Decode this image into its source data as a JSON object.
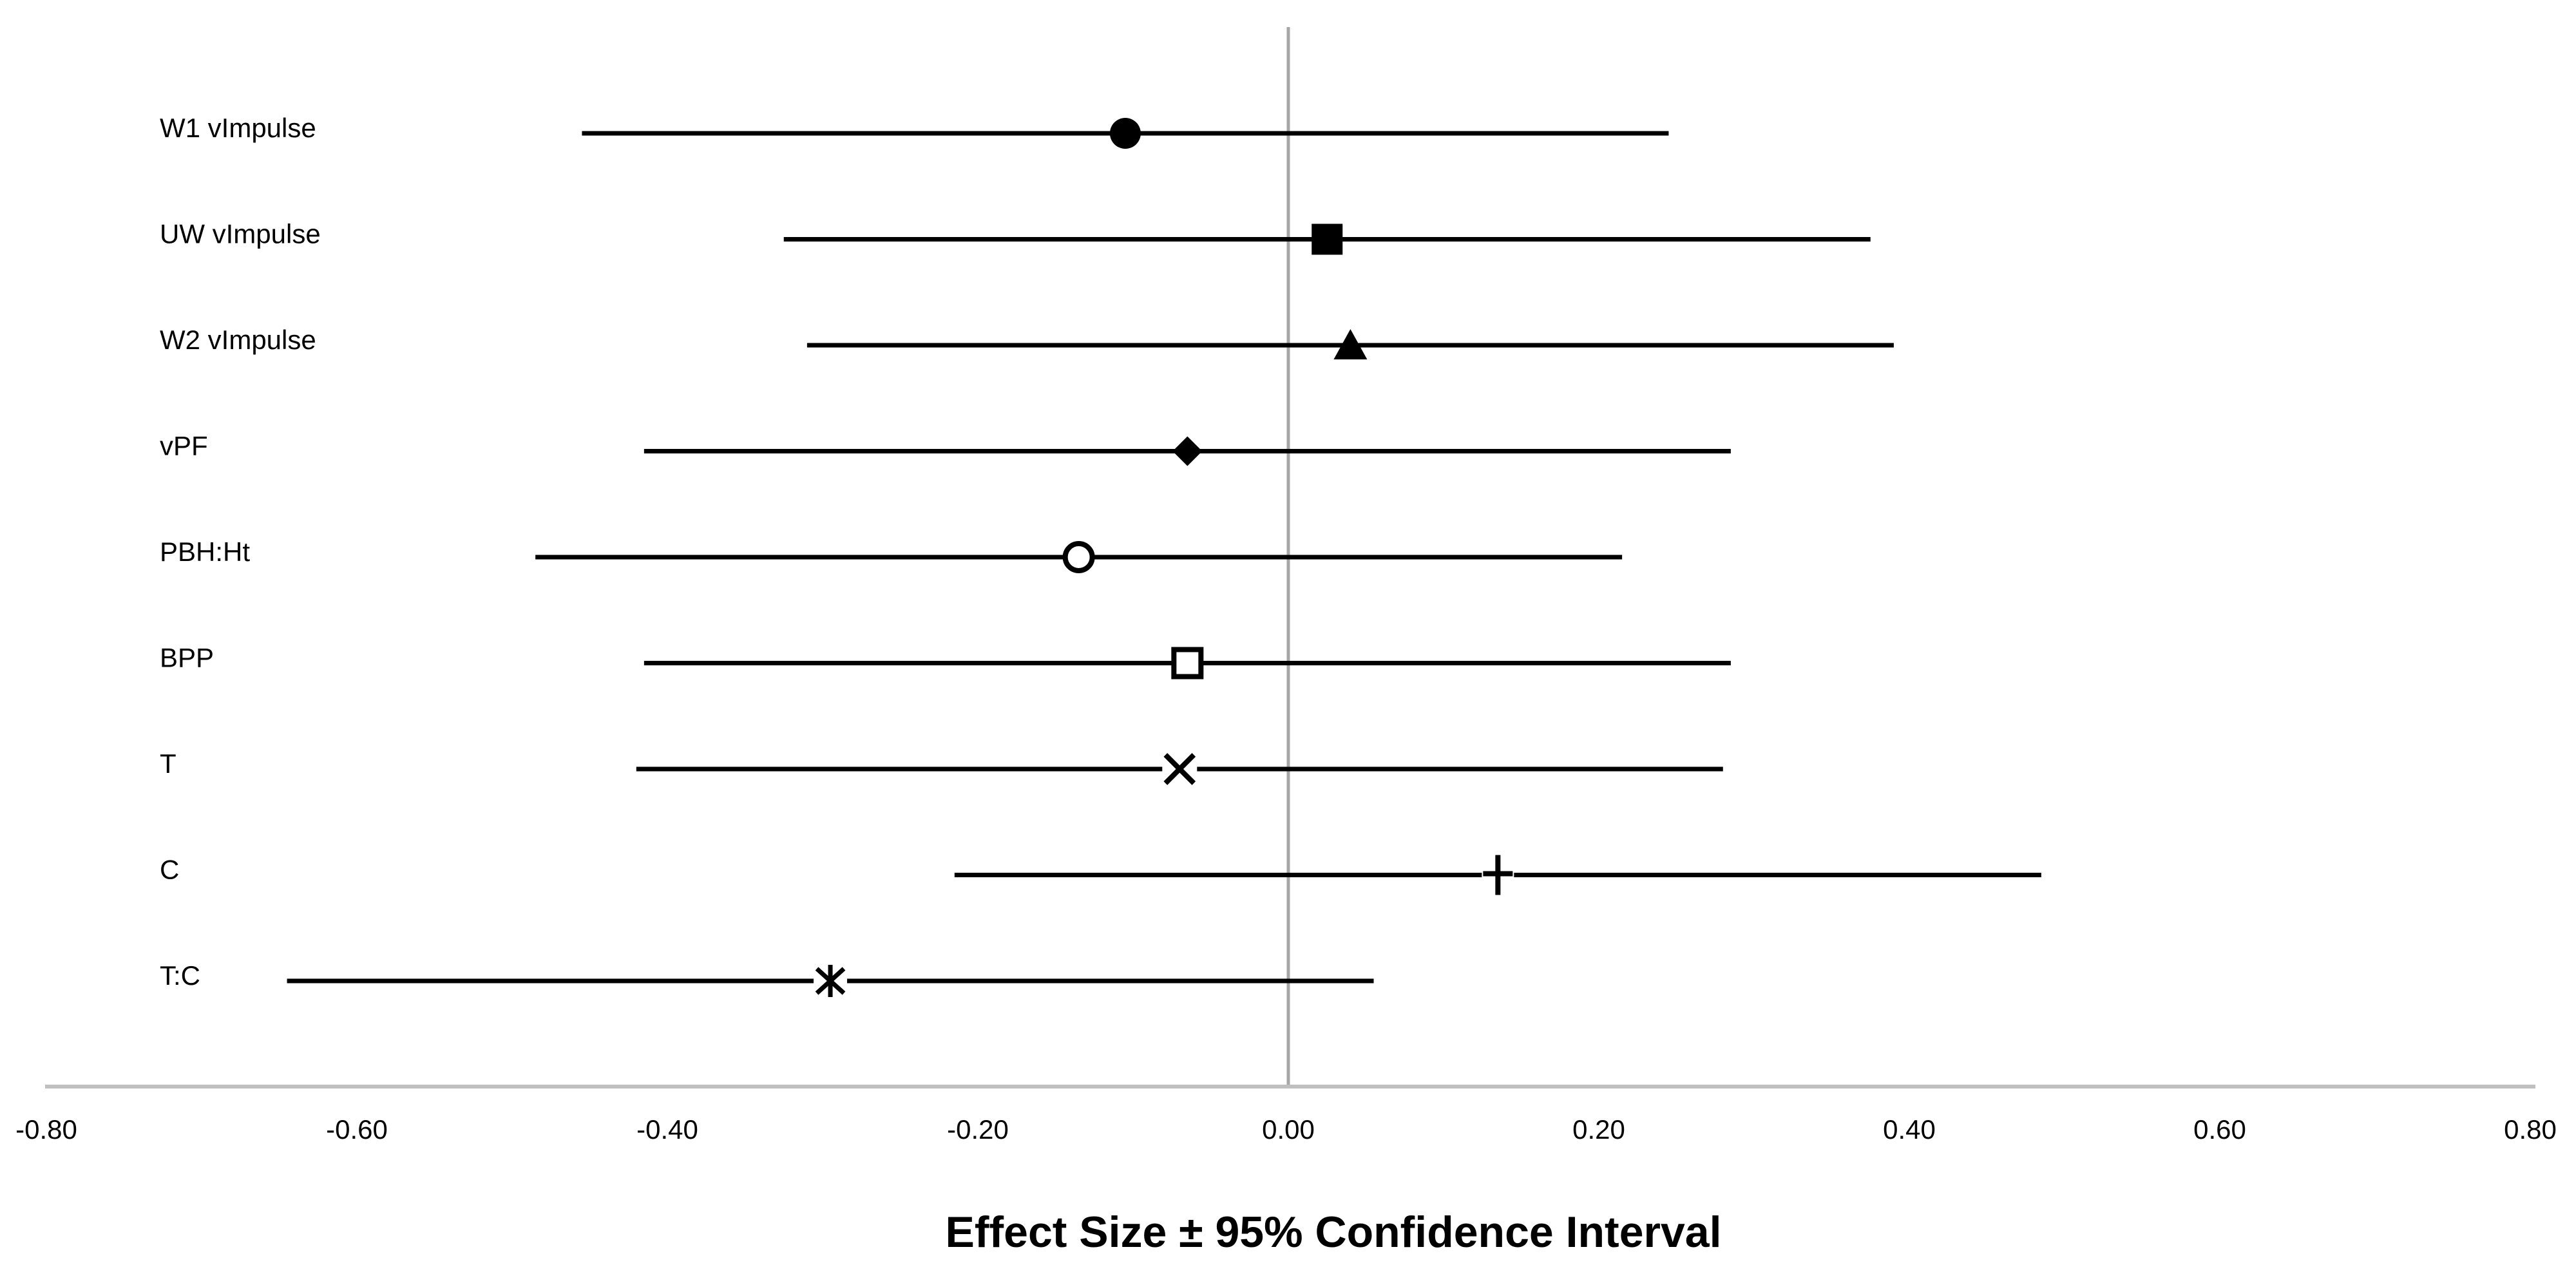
{
  "chart_data": {
    "type": "scatter",
    "subtype": "forest-plot-horizontal-error-bars",
    "title": "",
    "xlabel": "Effect Size ± 95% Confidence Interval",
    "ylabel": "",
    "xlim": [
      -0.8,
      0.8
    ],
    "xticks": [
      -0.8,
      -0.6,
      -0.4,
      -0.2,
      0.0,
      0.2,
      0.4,
      0.6,
      0.8
    ],
    "xtick_labels": [
      "-0.80",
      "-0.60",
      "-0.40",
      "-0.20",
      "0.00",
      "0.20",
      "0.40",
      "0.60",
      "0.80"
    ],
    "reference_line_x": 0.0,
    "grid": "off",
    "legend": "none",
    "rows": [
      {
        "label": "W1 vImpulse",
        "marker": "filled-circle",
        "effect": -0.105,
        "ci_low": -0.455,
        "ci_high": 0.245
      },
      {
        "label": "UW vImpulse",
        "marker": "filled-square",
        "effect": 0.025,
        "ci_low": -0.325,
        "ci_high": 0.375
      },
      {
        "label": "W2 vImpulse",
        "marker": "filled-triangle",
        "effect": 0.04,
        "ci_low": -0.31,
        "ci_high": 0.39
      },
      {
        "label": "vPF",
        "marker": "filled-diamond",
        "effect": -0.065,
        "ci_low": -0.415,
        "ci_high": 0.285
      },
      {
        "label": "PBH:Ht",
        "marker": "open-circle",
        "effect": -0.135,
        "ci_low": -0.485,
        "ci_high": 0.215
      },
      {
        "label": "BPP",
        "marker": "open-square",
        "effect": -0.065,
        "ci_low": -0.415,
        "ci_high": 0.285
      },
      {
        "label": "T",
        "marker": "x",
        "effect": -0.07,
        "ci_low": -0.42,
        "ci_high": 0.28
      },
      {
        "label": "C",
        "marker": "plus",
        "effect": 0.135,
        "ci_low": -0.215,
        "ci_high": 0.485
      },
      {
        "label": "T:C",
        "marker": "asterisk",
        "effect": -0.295,
        "ci_low": -0.645,
        "ci_high": 0.055
      }
    ],
    "colors": {
      "data": "#000000",
      "text": "#000000",
      "zero_line": "#a6a6a6",
      "axis_line": "#bfbfbf",
      "background": "#ffffff",
      "open_marker_fill": "#ffffff"
    }
  }
}
